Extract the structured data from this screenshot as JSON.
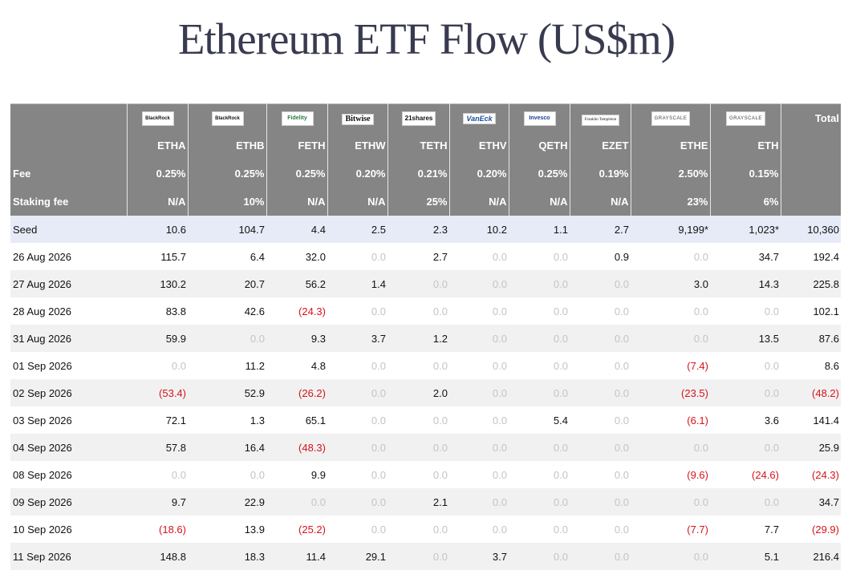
{
  "title": "Ethereum ETF Flow (US$m)",
  "colors": {
    "header_bg": "#858585",
    "seed_bg": "#e7ebf7",
    "negative": "#d4141b",
    "zero": "#c4c4c4"
  },
  "issuers": [
    "BlackRock",
    "BlackRock",
    "Fidelity",
    "Bitwise",
    "21shares",
    "VanEck",
    "Invesco",
    "Franklin Templeton",
    "GRAYSCALE",
    "GRAYSCALE"
  ],
  "total_label": "Total",
  "tickers": [
    "ETHA",
    "ETHB",
    "FETH",
    "ETHW",
    "TETH",
    "ETHV",
    "QETH",
    "EZET",
    "ETHE",
    "ETH"
  ],
  "fee_label": "Fee",
  "fees": [
    "0.25%",
    "0.25%",
    "0.25%",
    "0.20%",
    "0.21%",
    "0.20%",
    "0.25%",
    "0.19%",
    "2.50%",
    "0.15%"
  ],
  "staking_label": "Staking fee",
  "staking_fees": [
    "N/A",
    "10%",
    "N/A",
    "N/A",
    "25%",
    "N/A",
    "N/A",
    "N/A",
    "23%",
    "6%"
  ],
  "rows": [
    {
      "date": "Seed",
      "values": [
        "10.6",
        "104.7",
        "4.4",
        "2.5",
        "2.3",
        "10.2",
        "1.1",
        "2.7",
        "9,199*",
        "1,023*"
      ],
      "total": "10,360"
    },
    {
      "date": "26 Aug 2026",
      "values": [
        "115.7",
        "6.4",
        "32.0",
        "0.0",
        "2.7",
        "0.0",
        "0.0",
        "0.9",
        "0.0",
        "34.7"
      ],
      "total": "192.4"
    },
    {
      "date": "27 Aug 2026",
      "values": [
        "130.2",
        "20.7",
        "56.2",
        "1.4",
        "0.0",
        "0.0",
        "0.0",
        "0.0",
        "3.0",
        "14.3"
      ],
      "total": "225.8"
    },
    {
      "date": "28 Aug 2026",
      "values": [
        "83.8",
        "42.6",
        "(24.3)",
        "0.0",
        "0.0",
        "0.0",
        "0.0",
        "0.0",
        "0.0",
        "0.0"
      ],
      "total": "102.1"
    },
    {
      "date": "31 Aug 2026",
      "values": [
        "59.9",
        "0.0",
        "9.3",
        "3.7",
        "1.2",
        "0.0",
        "0.0",
        "0.0",
        "0.0",
        "13.5"
      ],
      "total": "87.6"
    },
    {
      "date": "01 Sep 2026",
      "values": [
        "0.0",
        "11.2",
        "4.8",
        "0.0",
        "0.0",
        "0.0",
        "0.0",
        "0.0",
        "(7.4)",
        "0.0"
      ],
      "total": "8.6"
    },
    {
      "date": "02 Sep 2026",
      "values": [
        "(53.4)",
        "52.9",
        "(26.2)",
        "0.0",
        "2.0",
        "0.0",
        "0.0",
        "0.0",
        "(23.5)",
        "0.0"
      ],
      "total": "(48.2)"
    },
    {
      "date": "03 Sep 2026",
      "values": [
        "72.1",
        "1.3",
        "65.1",
        "0.0",
        "0.0",
        "0.0",
        "5.4",
        "0.0",
        "(6.1)",
        "3.6"
      ],
      "total": "141.4"
    },
    {
      "date": "04 Sep 2026",
      "values": [
        "57.8",
        "16.4",
        "(48.3)",
        "0.0",
        "0.0",
        "0.0",
        "0.0",
        "0.0",
        "0.0",
        "0.0"
      ],
      "total": "25.9"
    },
    {
      "date": "08 Sep 2026",
      "values": [
        "0.0",
        "0.0",
        "9.9",
        "0.0",
        "0.0",
        "0.0",
        "0.0",
        "0.0",
        "(9.6)",
        "(24.6)"
      ],
      "total": "(24.3)"
    },
    {
      "date": "09 Sep 2026",
      "values": [
        "9.7",
        "22.9",
        "0.0",
        "0.0",
        "2.1",
        "0.0",
        "0.0",
        "0.0",
        "0.0",
        "0.0"
      ],
      "total": "34.7"
    },
    {
      "date": "10 Sep 2026",
      "values": [
        "(18.6)",
        "13.9",
        "(25.2)",
        "0.0",
        "0.0",
        "0.0",
        "0.0",
        "0.0",
        "(7.7)",
        "7.7"
      ],
      "total": "(29.9)"
    },
    {
      "date": "11 Sep 2026",
      "values": [
        "148.8",
        "18.3",
        "11.4",
        "29.1",
        "0.0",
        "3.7",
        "0.0",
        "0.0",
        "0.0",
        "5.1"
      ],
      "total": "216.4"
    }
  ]
}
